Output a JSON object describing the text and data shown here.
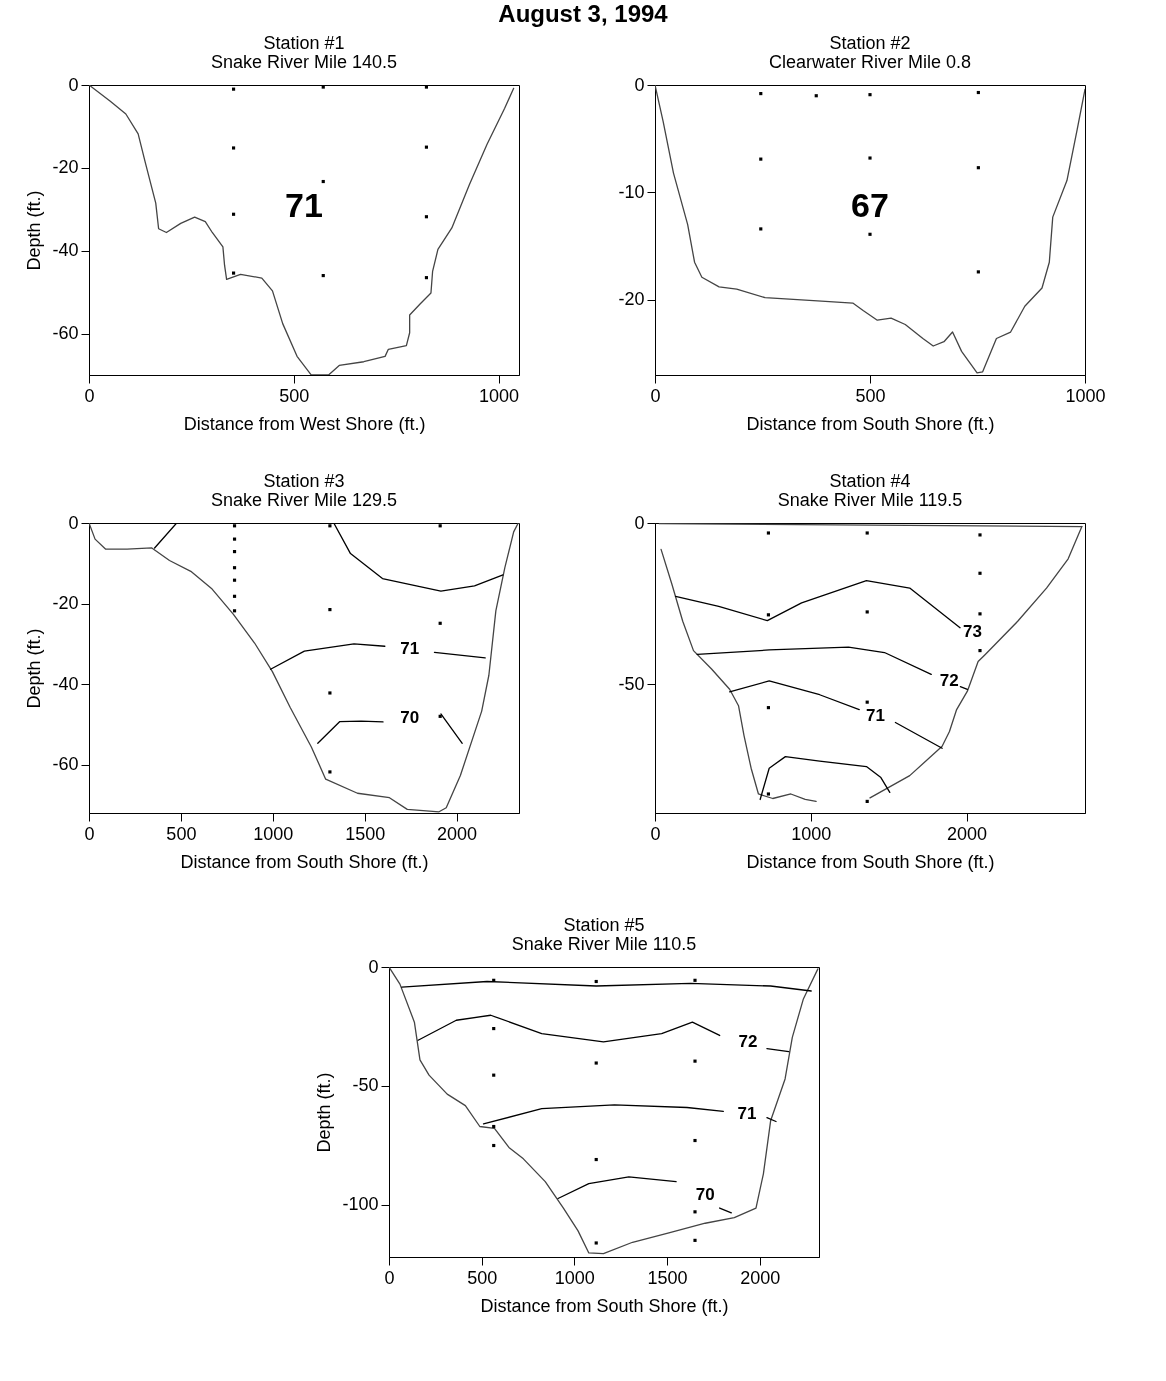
{
  "chart_data": [
    {
      "type": "other",
      "title": "August 3, 1994"
    },
    {
      "type": "line",
      "title": "Station #1",
      "subtitle": "Snake River Mile 140.5",
      "xlabel": "Distance from West Shore (ft.)",
      "ylabel": "Depth (ft.)",
      "xlim": [
        0,
        1050
      ],
      "ylim": [
        -70,
        0
      ],
      "xticks": [
        0,
        500,
        1000
      ],
      "yticks": [
        0,
        -20,
        -40,
        -60
      ],
      "series": [
        {
          "type": "line",
          "color": "#444444",
          "x": [
            0,
            52,
            90,
            120,
            138,
            163,
            170,
            189,
            224,
            258,
            284,
            301,
            327,
            331,
            336,
            370,
            422,
            448,
            473,
            508,
            542,
            585,
            611,
            671,
            723,
            731,
            775,
            783,
            783,
            809,
            835,
            839,
            852,
            886,
            929,
            972,
            1015,
            1037
          ],
          "values": [
            0,
            -3.9,
            -7,
            -11.8,
            -18.9,
            -28.5,
            -34.7,
            -35.6,
            -33.4,
            -31.9,
            -33,
            -35.6,
            -39.1,
            -43.5,
            -46.9,
            -45.7,
            -46.6,
            -49.7,
            -57.6,
            -65.5,
            -69.9,
            -70,
            -67.7,
            -66.8,
            -65.5,
            -63.8,
            -62.9,
            -59.8,
            -55.5,
            -52.8,
            -50.2,
            -45,
            -39.7,
            -34.5,
            -24,
            -14.3,
            -5.6,
            -0.8
          ]
        },
        {
          "type": "scatter",
          "marker": "square",
          "color": "#000000",
          "x": [
            353,
            353,
            353,
            353,
            572,
            572,
            572,
            824,
            824,
            824,
            824
          ],
          "values": [
            -1,
            -15.2,
            -31.2,
            -45.4,
            -0.5,
            -23.3,
            -46,
            -0.5,
            -15,
            -31.8,
            -46.5
          ]
        }
      ],
      "annotations": [
        "71"
      ]
    },
    {
      "type": "line",
      "title": "Station #2",
      "subtitle": "Clearwater River Mile 0.8",
      "xlabel": "Distance from South Shore (ft.)",
      "xlim": [
        0,
        1000
      ],
      "ylim": [
        -27,
        0
      ],
      "xticks": [
        0,
        500,
        1000
      ],
      "yticks": [
        0,
        -10,
        -20
      ],
      "series": [
        {
          "type": "line",
          "color": "#444444",
          "x": [
            0,
            19,
            43,
            76,
            92,
            109,
            149,
            190,
            256,
            378,
            460,
            484,
            517,
            549,
            582,
            623,
            647,
            672,
            692,
            713,
            749,
            762,
            794,
            827,
            860,
            900,
            917,
            925,
            958,
            982,
            1000
          ],
          "values": [
            0,
            -3.4,
            -8.2,
            -13,
            -16.5,
            -17.9,
            -18.8,
            -19,
            -19.8,
            -20.1,
            -20.3,
            -21,
            -21.9,
            -21.7,
            -22.3,
            -23.6,
            -24.3,
            -23.9,
            -23,
            -24.8,
            -26.8,
            -26.7,
            -23.6,
            -23,
            -20.6,
            -18.9,
            -16.5,
            -12.3,
            -8.9,
            -4.1,
            -0.4
          ]
        },
        {
          "type": "scatter",
          "marker": "square",
          "color": "#000000",
          "x": [
            246,
            246,
            246,
            375,
            500,
            500,
            500,
            752,
            752,
            752
          ],
          "values": [
            -0.8,
            -6.9,
            -13.4,
            -1,
            -0.9,
            -6.8,
            -13.9,
            -0.7,
            -7.7,
            -17.4
          ]
        }
      ],
      "annotations": [
        "67"
      ]
    },
    {
      "type": "line",
      "title": "Station #3",
      "subtitle": "Snake River Mile 129.5",
      "xlabel": "Distance from South Shore (ft.)",
      "ylabel": "Depth (ft.)",
      "xlim": [
        0,
        2340
      ],
      "ylim": [
        -72,
        0
      ],
      "xticks": [
        0,
        500,
        1000,
        1500,
        2000
      ],
      "yticks": [
        0,
        -20,
        -40,
        -60
      ],
      "series": [
        {
          "type": "line",
          "color": "#444444",
          "x": [
            0,
            33,
            91,
            207,
            342,
            438,
            554,
            670,
            786,
            901,
            998,
            1095,
            1210,
            1288,
            1461,
            1635,
            1732,
            1905,
            1944,
            2021,
            2137,
            2176,
            2214,
            2263,
            2311,
            2336
          ],
          "values": [
            0,
            -4,
            -6.5,
            -6.5,
            -6.2,
            -9.3,
            -12,
            -16.4,
            -22.7,
            -29.8,
            -36.9,
            -45.8,
            -55.6,
            -63.6,
            -67.1,
            -68.2,
            -71.1,
            -71.7,
            -70.7,
            -62.7,
            -46.7,
            -37.8,
            -21.8,
            -11.1,
            -2.2,
            0
          ]
        },
        {
          "type": "line",
          "color": "#000000",
          "x": [
            357,
            477
          ],
          "values": [
            -6.2,
            0
          ]
        },
        {
          "type": "line",
          "color": "#000000",
          "x": [
            1332,
            1423,
            1597,
            1915,
            2098,
            2253
          ],
          "values": [
            0,
            -7.6,
            -13.8,
            -16.9,
            -15.6,
            -12.9
          ]
        },
        {
          "type": "line",
          "name": "71",
          "color": "#000000",
          "x": [
            988,
            1172,
            1442,
            1610,
            1745,
            1880,
            2156
          ],
          "values": [
            -36.3,
            -31.8,
            -30,
            -30.6,
            null,
            -32.1,
            -33.5
          ]
        },
        {
          "type": "line",
          "name": "70",
          "color": "#000000",
          "x": [
            1245,
            1365,
            1481,
            1600,
            1745,
            1915,
            2031
          ],
          "values": [
            -54.7,
            -49.3,
            -49.2,
            -49.4,
            null,
            -47.4,
            -54.7
          ]
        },
        {
          "type": "scatter",
          "marker": "square",
          "color": "#000000",
          "x": [
            792,
            792,
            792,
            792,
            792,
            792,
            792,
            1311,
            1311,
            1311,
            1311,
            1911,
            1911,
            1911
          ],
          "values": [
            -0.7,
            -4,
            -7.1,
            -11.1,
            -14.2,
            -18.2,
            -21.8,
            -0.7,
            -21.5,
            -42.2,
            -61.8,
            -0.7,
            -24.9,
            -48
          ]
        }
      ]
    },
    {
      "type": "line",
      "title": "Station #4",
      "subtitle": "Snake River Mile 119.5",
      "xlabel": "Distance from South Shore (ft.)",
      "xlim": [
        0,
        2760
      ],
      "ylim": [
        -90,
        0
      ],
      "xticks": [
        0,
        1000,
        2000
      ],
      "yticks": [
        0,
        -50
      ],
      "series": [
        {
          "type": "line",
          "color": "#444444",
          "x": [
            39,
            109,
            178,
            247,
            363,
            479,
            536,
            571,
            617,
            664,
            756,
            872,
            964,
            1034,
            1068,
            1207,
            1380,
            1635,
            1843,
            1890,
            1936,
            2005,
            2074,
            2120,
            2328,
            2513,
            2652,
            2740
          ],
          "values": [
            -8.2,
            -19.1,
            -30.5,
            -39.6,
            -45.3,
            -51.6,
            -56.7,
            -65.9,
            -76.1,
            -84.1,
            -85.5,
            -84.1,
            -85.8,
            -86.4,
            null,
            null,
            -85.3,
            -78.4,
            -69.3,
            -64.7,
            -57.9,
            -52.2,
            -43,
            -40.8,
            -30.5,
            -20.2,
            -11.1,
            -1.1
          ]
        },
        {
          "type": "line",
          "color": "#444444",
          "x": [
            28,
            2740
          ],
          "values": [
            -0.2,
            -1.1
          ]
        },
        {
          "type": "line",
          "name": "73",
          "color": "#000000",
          "x": [
            132,
            409,
            721,
            941,
            1357,
            1635,
            1958
          ],
          "values": [
            -22.8,
            -25.9,
            -30.3,
            -24.8,
            -17.9,
            -20.2,
            -32.5
          ]
        },
        {
          "type": "line",
          "name": "72",
          "color": "#000000",
          "x": [
            271,
            733,
            1242,
            1473,
            1773,
            1889,
            1960,
            2005
          ],
          "values": [
            -40.8,
            -39.4,
            -38.5,
            -40.2,
            -47,
            null,
            -50.8,
            -51.6
          ]
        },
        {
          "type": "line",
          "name": "71",
          "color": "#000000",
          "x": [
            479,
            733,
            1057,
            1311,
            1415,
            1543,
            1843
          ],
          "values": [
            -52.4,
            -49,
            -53.3,
            -57.9,
            null,
            -61.9,
            -69.9
          ]
        },
        {
          "type": "line",
          "color": "#000000",
          "x": [
            675,
            733,
            837,
            1057,
            1357,
            1450,
            1507
          ],
          "values": [
            -85.8,
            -76.1,
            -72.5,
            -73.9,
            -75.6,
            -79,
            -83.6
          ]
        },
        {
          "type": "scatter",
          "marker": "square",
          "color": "#000000",
          "x": [
            728,
            728,
            728,
            728,
            1362,
            1362,
            1362,
            1362,
            2086,
            2086,
            2086,
            2086
          ],
          "values": [
            -3.1,
            -28.5,
            -57.3,
            -84.1,
            -3.1,
            -27.6,
            -55.6,
            -86.4,
            -3.7,
            -15.6,
            -28.2,
            -39.6
          ]
        }
      ]
    },
    {
      "type": "line",
      "title": "Station #5",
      "subtitle": "Snake River Mile 110.5",
      "xlabel": "Distance from  South Shore (ft.)",
      "ylabel": "Depth (ft.)",
      "xlim": [
        0,
        2320
      ],
      "ylim": [
        -122,
        0
      ],
      "xticks": [
        0,
        500,
        1000,
        1500,
        2000
      ],
      "yticks": [
        0,
        -50,
        -100
      ],
      "series": [
        {
          "type": "line",
          "color": "#444444",
          "x": [
            0,
            59,
            137,
            167,
            216,
            314,
            412,
            490,
            569,
            647,
            725,
            843,
            941,
            1020,
            1078,
            1157,
            1314,
            1510,
            1706,
            1863,
            1980,
            2020,
            2059,
            2137,
            2176,
            2235,
            2314
          ],
          "values": [
            0,
            -7.2,
            -23.2,
            -39.1,
            -45.5,
            -53.5,
            -58.3,
            -67.1,
            -67.9,
            -75.9,
            -80.7,
            -90.3,
            -101.4,
            -111,
            -120.3,
            -120.6,
            -115.8,
            -111.8,
            -107.8,
            -105.4,
            -101.4,
            -87,
            -64.7,
            -47.1,
            -29.6,
            -13.6,
            -0.8
          ]
        },
        {
          "type": "line",
          "color": "#000000",
          "x": [
            69,
            529,
            1118,
            1627,
            2059,
            2278
          ],
          "values": [
            -8.5,
            -6.1,
            -8,
            -6.9,
            -8,
            -10.1
          ]
        },
        {
          "type": "line",
          "name": "72",
          "color": "#000000",
          "x": [
            157,
            363,
            549,
            824,
            1157,
            1471,
            1637,
            1784,
            1937,
            2039,
            2157
          ],
          "values": [
            -30.8,
            -22.4,
            -20.3,
            -28,
            -31.5,
            -28,
            -23.2,
            -28.8,
            null,
            -34.3,
            -35.6
          ]
        },
        {
          "type": "line",
          "name": "71",
          "color": "#000000",
          "x": [
            510,
            824,
            1216,
            1608,
            1804,
            1931,
            2039,
            2088
          ],
          "values": [
            -66,
            -59.6,
            -58,
            -59.1,
            -60.7,
            null,
            -63.4,
            -65
          ]
        },
        {
          "type": "line",
          "name": "70",
          "color": "#000000",
          "x": [
            912,
            1078,
            1294,
            1549,
            1706,
            1784,
            1847
          ],
          "values": [
            -97.4,
            -91.1,
            -88.3,
            -90.3,
            null,
            -101.4,
            -103.4
          ]
        },
        {
          "type": "scatter",
          "marker": "square",
          "color": "#000000",
          "x": [
            565,
            565,
            565,
            565,
            565,
            1118,
            1118,
            1118,
            1118,
            1651,
            1651,
            1651,
            1651,
            1651
          ],
          "values": [
            -5.6,
            -25.9,
            -45.5,
            -67.1,
            -75.1,
            -6.1,
            -40.4,
            -81,
            -116.1,
            -5.6,
            -39.6,
            -73,
            -103,
            -115
          ]
        }
      ]
    }
  ]
}
